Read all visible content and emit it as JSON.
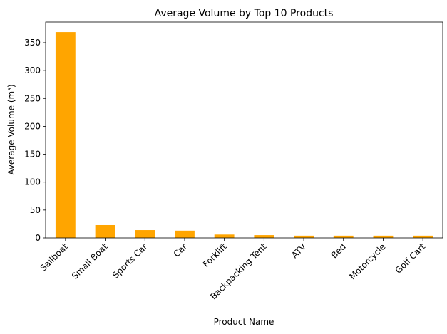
{
  "chart_data": {
    "type": "bar",
    "title": "Average Volume by Top 10 Products",
    "xlabel": "Product Name",
    "ylabel": "Average Volume (m³)",
    "categories": [
      "Sailboat",
      "Small Boat",
      "Sports Car",
      "Car",
      "Forklift",
      "Backpacking Tent",
      "ATV",
      "Bed",
      "Motorcycle",
      "Golf Cart"
    ],
    "values": [
      369,
      23,
      14,
      13,
      6,
      5,
      4,
      4,
      4,
      4
    ],
    "ylim": [
      0,
      387
    ],
    "yticks": [
      0,
      50,
      100,
      150,
      200,
      250,
      300,
      350
    ],
    "bar_color": "#ffa500",
    "grid": false
  }
}
